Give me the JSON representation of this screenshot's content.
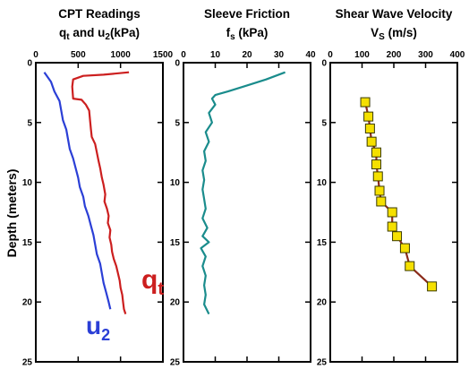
{
  "chart_data": [
    {
      "type": "line",
      "title_line1": "CPT Readings",
      "title_parts": [
        {
          "text": "q",
          "sub": false
        },
        {
          "text": "t",
          "sub": true
        },
        {
          "text": " and u",
          "sub": false
        },
        {
          "text": "2",
          "sub": true
        },
        {
          "text": "(kPa)",
          "sub": false
        }
      ],
      "ylabel": "Depth (meters)",
      "xlim": [
        0,
        1500
      ],
      "ylim": [
        0,
        25
      ],
      "y_inverted": true,
      "xticks": [
        "0",
        "500",
        "1000",
        "1500"
      ],
      "yticks": [
        "0",
        "5",
        "10",
        "15",
        "20",
        "25"
      ],
      "series": [
        {
          "name": "qt",
          "label_main": "q",
          "label_sub": "t",
          "color": "#cc1f1f",
          "points": [
            [
              1100,
              0.8
            ],
            [
              800,
              1.0
            ],
            [
              560,
              1.1
            ],
            [
              440,
              1.4
            ],
            [
              430,
              2.0
            ],
            [
              440,
              3.0
            ],
            [
              540,
              3.1
            ],
            [
              590,
              3.5
            ],
            [
              630,
              4.0
            ],
            [
              640,
              4.8
            ],
            [
              650,
              5.5
            ],
            [
              660,
              6.2
            ],
            [
              700,
              6.8
            ],
            [
              720,
              7.5
            ],
            [
              740,
              8.2
            ],
            [
              760,
              8.8
            ],
            [
              780,
              9.6
            ],
            [
              800,
              10.2
            ],
            [
              820,
              11.0
            ],
            [
              810,
              11.6
            ],
            [
              840,
              12.2
            ],
            [
              860,
              12.8
            ],
            [
              850,
              13.4
            ],
            [
              880,
              14.0
            ],
            [
              870,
              14.6
            ],
            [
              890,
              15.2
            ],
            [
              900,
              15.8
            ],
            [
              920,
              16.4
            ],
            [
              950,
              17.0
            ],
            [
              970,
              17.6
            ],
            [
              990,
              18.2
            ],
            [
              1000,
              18.8
            ],
            [
              1020,
              19.4
            ],
            [
              1030,
              20.0
            ],
            [
              1040,
              20.6
            ],
            [
              1060,
              21.0
            ]
          ]
        },
        {
          "name": "u2",
          "label_main": "u",
          "label_sub": "2",
          "color": "#2b3fd6",
          "points": [
            [
              100,
              0.8
            ],
            [
              180,
              1.6
            ],
            [
              220,
              2.4
            ],
            [
              280,
              3.2
            ],
            [
              300,
              4.0
            ],
            [
              320,
              4.8
            ],
            [
              360,
              5.6
            ],
            [
              380,
              6.4
            ],
            [
              400,
              7.2
            ],
            [
              440,
              8.0
            ],
            [
              470,
              8.8
            ],
            [
              500,
              9.6
            ],
            [
              520,
              10.4
            ],
            [
              560,
              11.2
            ],
            [
              580,
              12.0
            ],
            [
              620,
              12.8
            ],
            [
              650,
              13.6
            ],
            [
              680,
              14.4
            ],
            [
              700,
              15.2
            ],
            [
              720,
              16.0
            ],
            [
              760,
              16.8
            ],
            [
              780,
              17.6
            ],
            [
              800,
              18.4
            ],
            [
              830,
              19.2
            ],
            [
              860,
              20.0
            ],
            [
              880,
              20.6
            ]
          ]
        }
      ]
    },
    {
      "type": "line",
      "title_line1": "Sleeve Friction",
      "title_parts": [
        {
          "text": "f",
          "sub": false
        },
        {
          "text": "s",
          "sub": true
        },
        {
          "text": " (kPa)",
          "sub": false
        }
      ],
      "xlim": [
        0,
        40
      ],
      "ylim": [
        0,
        25
      ],
      "y_inverted": true,
      "xticks": [
        "0",
        "10",
        "20",
        "30",
        "40"
      ],
      "yticks": [
        "0",
        "5",
        "10",
        "15",
        "20",
        "25"
      ],
      "series": [
        {
          "name": "fs",
          "color": "#1a8c8c",
          "points": [
            [
              32,
              0.8
            ],
            [
              26,
              1.4
            ],
            [
              20,
              1.9
            ],
            [
              14,
              2.4
            ],
            [
              10,
              2.7
            ],
            [
              9,
              3.0
            ],
            [
              10,
              3.5
            ],
            [
              8,
              4.2
            ],
            [
              9,
              5.0
            ],
            [
              7,
              5.8
            ],
            [
              8,
              6.6
            ],
            [
              6.5,
              7.4
            ],
            [
              7,
              8.2
            ],
            [
              6,
              9.0
            ],
            [
              6.5,
              9.8
            ],
            [
              6,
              10.6
            ],
            [
              6.5,
              11.4
            ],
            [
              7,
              12.2
            ],
            [
              6,
              13.0
            ],
            [
              7.5,
              13.8
            ],
            [
              6,
              14.5
            ],
            [
              8,
              15.0
            ],
            [
              5.5,
              15.5
            ],
            [
              7,
              16.2
            ],
            [
              6,
              17.0
            ],
            [
              7,
              17.8
            ],
            [
              6.5,
              18.6
            ],
            [
              7,
              19.4
            ],
            [
              6.5,
              20.2
            ],
            [
              8,
              21.0
            ]
          ]
        }
      ]
    },
    {
      "type": "line",
      "title_line1": "Shear Wave Velocity",
      "title_parts": [
        {
          "text": "V",
          "sub": false
        },
        {
          "text": "S",
          "sub": true
        },
        {
          "text": " (m/s)",
          "sub": false
        }
      ],
      "xlim": [
        0,
        400
      ],
      "ylim": [
        0,
        25
      ],
      "y_inverted": true,
      "xticks": [
        "0",
        "100",
        "200",
        "300",
        "400"
      ],
      "yticks": [
        "0",
        "5",
        "10",
        "15",
        "20",
        "25"
      ],
      "series": [
        {
          "name": "Vs",
          "color": "#8b2b1a",
          "marker_color": "#f5e000",
          "points": [
            [
              110,
              3.3
            ],
            [
              120,
              4.5
            ],
            [
              125,
              5.5
            ],
            [
              130,
              6.6
            ],
            [
              145,
              7.5
            ],
            [
              145,
              8.5
            ],
            [
              150,
              9.5
            ],
            [
              155,
              10.7
            ],
            [
              160,
              11.6
            ],
            [
              195,
              12.5
            ],
            [
              195,
              13.7
            ],
            [
              210,
              14.5
            ],
            [
              235,
              15.5
            ],
            [
              250,
              17.0
            ],
            [
              320,
              18.7
            ]
          ]
        }
      ]
    }
  ]
}
